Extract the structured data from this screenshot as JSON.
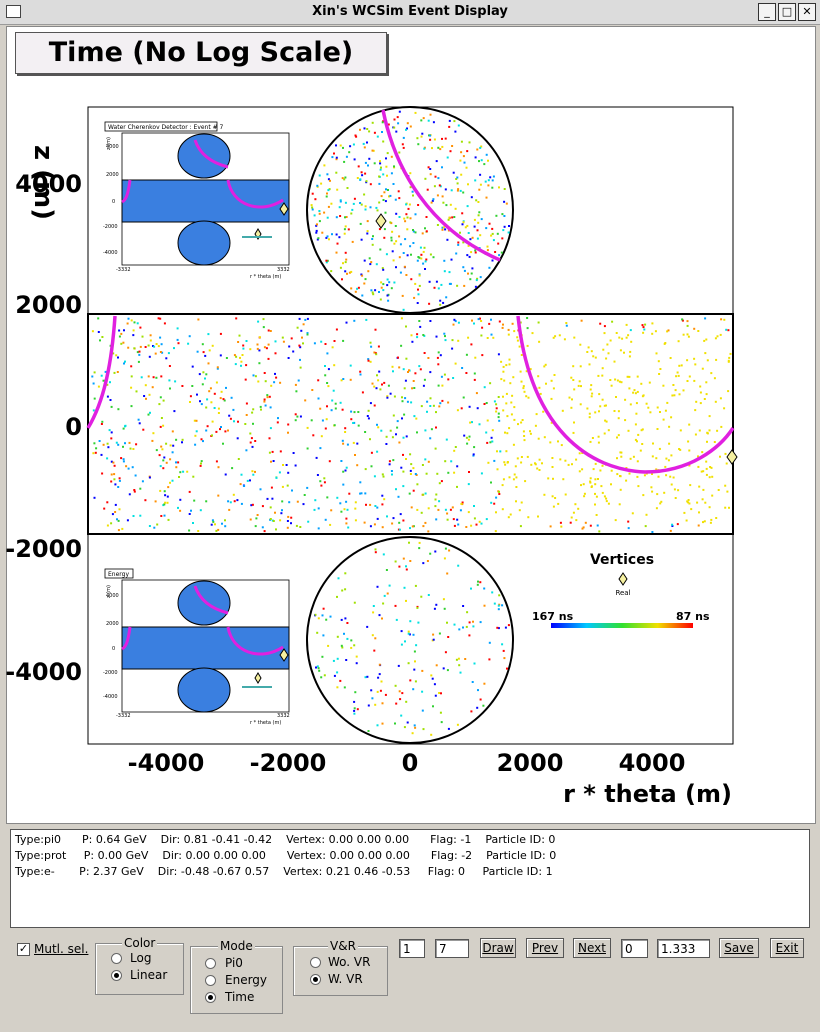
{
  "window": {
    "title": "Xin's WCSim Event Display"
  },
  "canvas_title": "Time (No Log Scale)",
  "plot": {
    "y_label": "z (m)",
    "x_label": "r * theta (m)",
    "y_ticks": [
      "4000",
      "2000",
      "0",
      "-2000",
      "-4000"
    ],
    "x_ticks": [
      "-4000",
      "-2000",
      "0",
      "2000",
      "4000"
    ],
    "inset_top_title": "Water Cherenkov Detector : Event # 7",
    "inset_bottom_title": "Energy",
    "inset_y_ticks": [
      "4000",
      "2000",
      "0",
      "-2000",
      "-4000"
    ],
    "inset_x_ticks": [
      "-3332",
      "3332"
    ],
    "inset_y_label": "z (m)",
    "inset_x_label": "r * theta (m)",
    "legend_title": "Vertices",
    "legend_item": "Real",
    "colorbar_min": "167 ns",
    "colorbar_max": "87 ns",
    "colors": {
      "ring": "#e020e0",
      "frame": "#000000"
    }
  },
  "particles": [
    "Type:pi0      P: 0.64 GeV    Dir: 0.81 -0.41 -0.42    Vertex: 0.00 0.00 0.00      Flag: -1    Particle ID: 0",
    "Type:prot     P: 0.00 GeV    Dir: 0.00 0.00 0.00      Vertex: 0.00 0.00 0.00      Flag: -2    Particle ID: 0",
    "Type:e-       P: 2.37 GeV    Dir: -0.48 -0.67 0.57    Vertex: 0.21 0.46 -0.53     Flag: 0     Particle ID: 1"
  ],
  "controls": {
    "mutl_sel": "Mutl. sel.",
    "color_group": {
      "label": "Color",
      "options": [
        "Log",
        "Linear"
      ],
      "selected": "Linear"
    },
    "mode_group": {
      "label": "Mode",
      "options": [
        "Pi0",
        "Energy",
        "Time"
      ],
      "selected": "Time"
    },
    "vr_group": {
      "label": "V&R",
      "options": [
        "Wo. VR",
        "W. VR"
      ],
      "selected": "W. VR"
    },
    "run_field": "1",
    "event_field": "7",
    "draw": "Draw",
    "prev": "Prev",
    "next": "Next",
    "index_field": "0",
    "scale_field": "1.333",
    "save": "Save",
    "exit": "Exit"
  }
}
